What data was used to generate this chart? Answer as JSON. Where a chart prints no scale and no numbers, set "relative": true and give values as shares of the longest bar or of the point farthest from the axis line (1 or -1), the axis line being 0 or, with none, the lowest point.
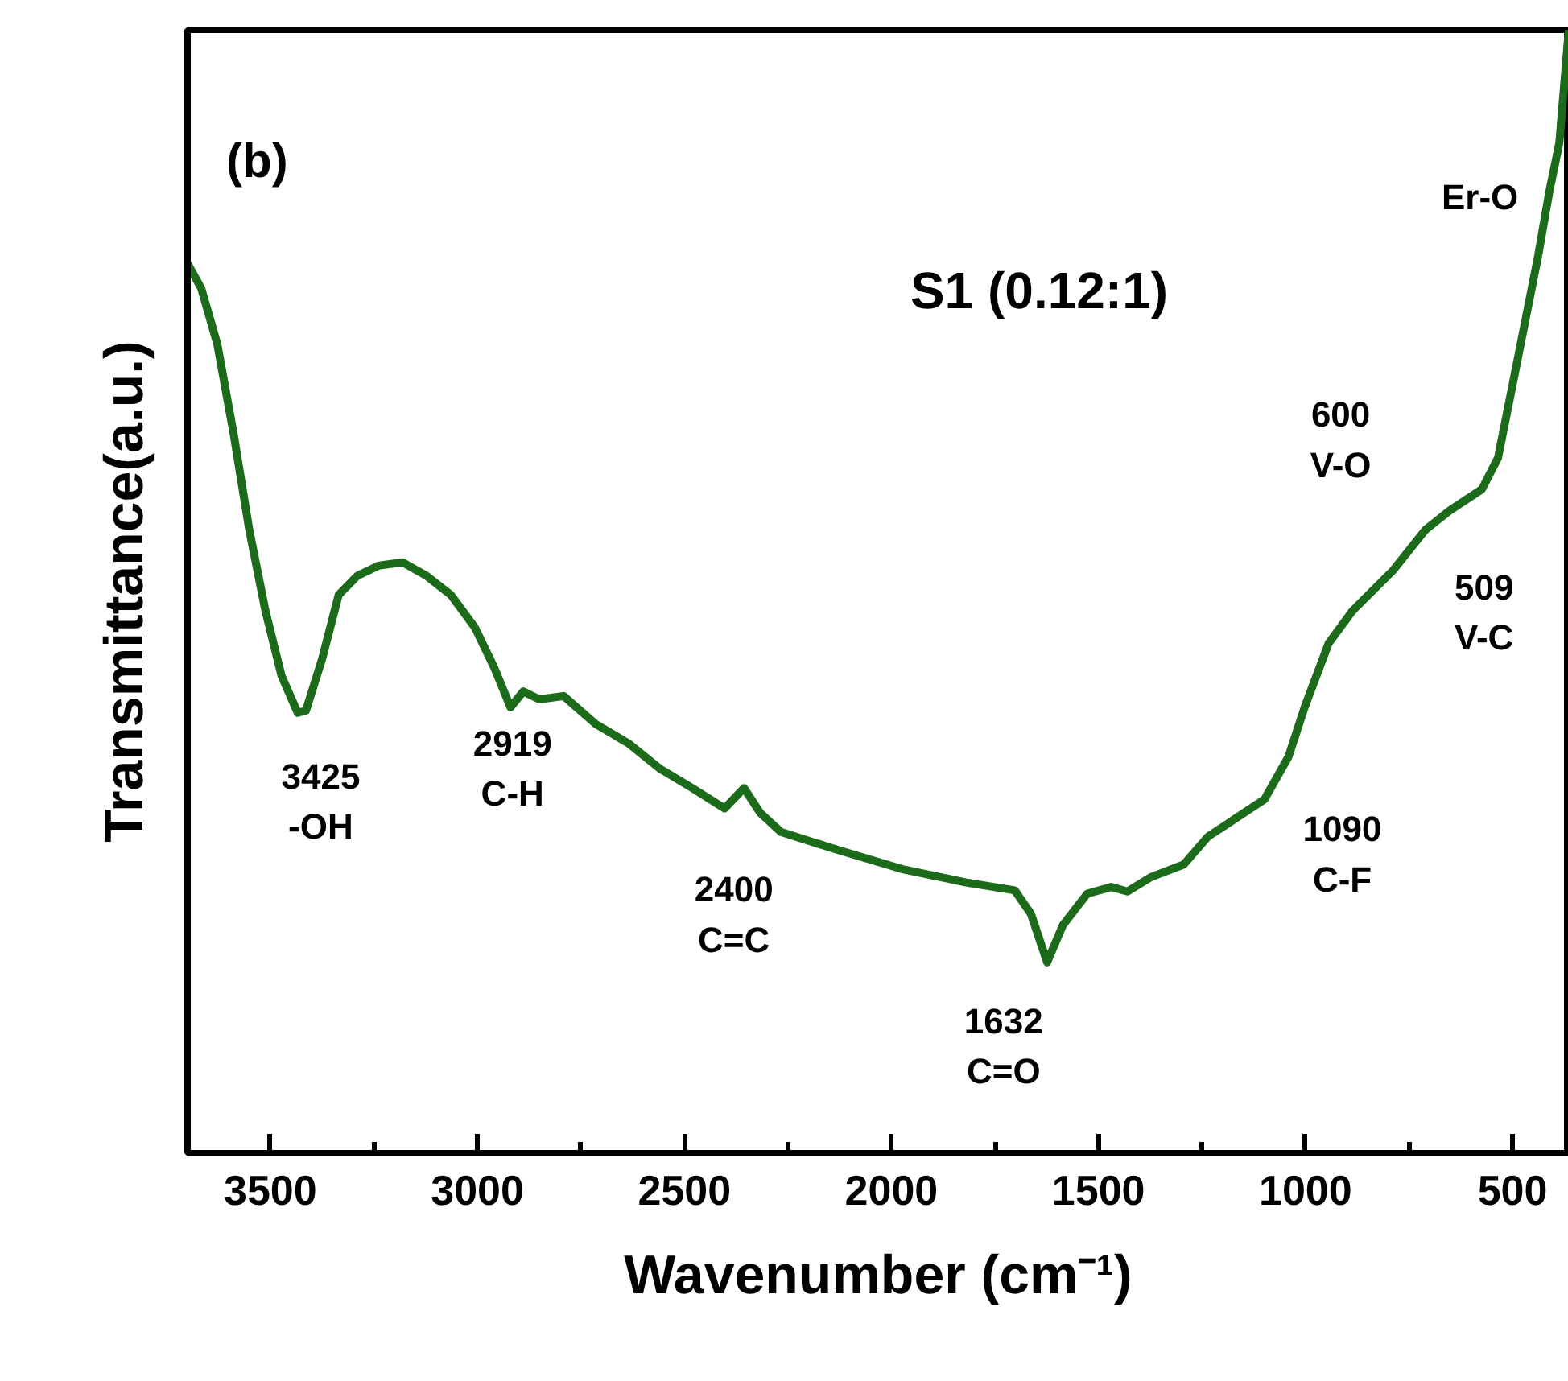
{
  "chart_data": {
    "type": "line",
    "title": "S1 (0.12:1)",
    "xlabel": "Wavenumber (cm⁻¹)",
    "ylabel": "Transmittance(a.u.)",
    "relative": true,
    "xlim": [
      3700,
      364
    ],
    "xticks": [
      3500,
      3000,
      2500,
      2000,
      1500,
      1000,
      500,
      {
        "value": 3250,
        "label": null
      },
      {
        "value": 2750,
        "label": null
      },
      {
        "value": 2250,
        "label": null
      },
      {
        "value": 1750,
        "label": null
      },
      {
        "value": 1250,
        "label": null
      },
      {
        "value": 750,
        "label": null
      }
    ],
    "x": [
      3700,
      3667,
      3628,
      3589,
      3551,
      3512,
      3473,
      3434,
      3414,
      3375,
      3335,
      3290,
      3239,
      3181,
      3123,
      3064,
      3006,
      2959,
      2920,
      2889,
      2850,
      2792,
      2714,
      2636,
      2558,
      2481,
      2403,
      2356,
      2317,
      2267,
      2130,
      1975,
      1819,
      1702,
      1663,
      1624,
      1586,
      1527,
      1469,
      1430,
      1372,
      1294,
      1235,
      1177,
      1099,
      1041,
      1002,
      944,
      886,
      788,
      710,
      652,
      574,
      535,
      496,
      438,
      411,
      387,
      364
    ],
    "series": [
      {
        "color": "#1b6b1b",
        "values": [
          0.792,
          0.77,
          0.72,
          0.641,
          0.555,
          0.483,
          0.425,
          0.392,
          0.394,
          0.44,
          0.497,
          0.514,
          0.523,
          0.526,
          0.514,
          0.497,
          0.468,
          0.432,
          0.397,
          0.411,
          0.404,
          0.407,
          0.382,
          0.365,
          0.342,
          0.325,
          0.307,
          0.325,
          0.303,
          0.286,
          0.27,
          0.253,
          0.241,
          0.234,
          0.213,
          0.17,
          0.203,
          0.231,
          0.237,
          0.233,
          0.246,
          0.257,
          0.282,
          0.296,
          0.315,
          0.353,
          0.397,
          0.454,
          0.483,
          0.519,
          0.555,
          0.572,
          0.591,
          0.619,
          0.691,
          0.799,
          0.856,
          0.899,
          1.0
        ]
      }
    ],
    "annotations": [
      "(b)",
      "Er-O",
      "509\nV-C",
      {
        "text": "3425\n-OH",
        "x": 3425,
        "y": 0.392
      },
      {
        "text": "2919\nC-H",
        "x": 2919,
        "y": 0.397
      },
      {
        "text": "2400\nC=C",
        "x": 2400,
        "y": 0.307
      },
      {
        "text": "1632\nC=O",
        "x": 1632,
        "y": 0.17
      },
      {
        "text": "1090\nC-F",
        "x": 1090,
        "y": 0.315
      },
      {
        "text": "600\nV-O",
        "x": 600,
        "y": 0.575
      }
    ],
    "grid": false,
    "marker": "none",
    "line_style": "solid"
  }
}
